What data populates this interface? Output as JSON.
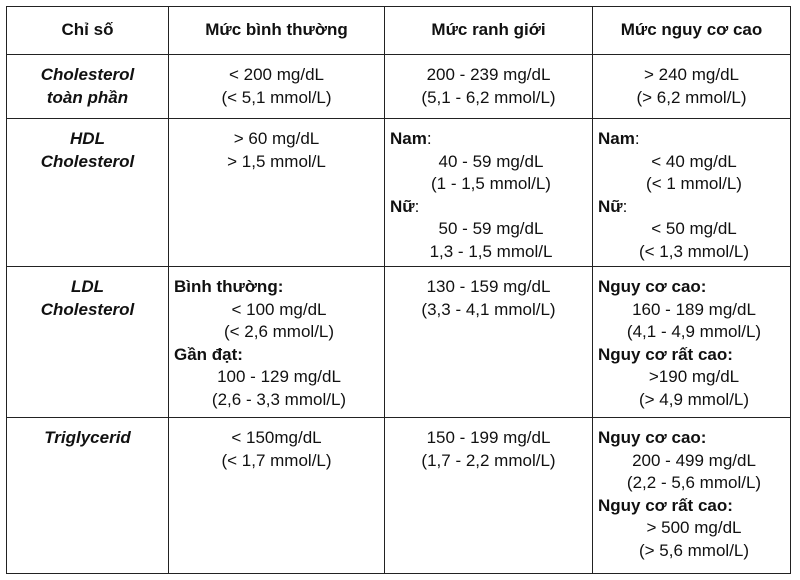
{
  "headers": [
    "Chỉ số",
    "Mức bình thường",
    "Mức ranh giới",
    "Mức nguy cơ cao"
  ],
  "rows": [
    {
      "name": [
        "Cholesterol",
        "toàn phần"
      ],
      "normal": [
        "< 200 mg/dL",
        "(< 5,1 mmol/L)"
      ],
      "borderline": [
        "200 - 239 mg/dL",
        "(5,1 - 6,2 mmol/L)"
      ],
      "high": [
        "> 240 mg/dL",
        "(> 6,2 mmol/L)"
      ]
    },
    {
      "name": [
        "HDL",
        "Cholesterol"
      ],
      "normal": [
        "> 60 mg/dL",
        "> 1,5 mmol/L"
      ],
      "borderline": {
        "male_label": "Nam",
        "male": [
          "40 - 59 mg/dL",
          "(1 - 1,5 mmol/L)"
        ],
        "female_label": "Nữ",
        "female": [
          "50 - 59 mg/dL",
          "1,3 - 1,5 mmol/L"
        ]
      },
      "high": {
        "male_label": "Nam",
        "male": [
          "< 40 mg/dL",
          "(< 1 mmol/L)"
        ],
        "female_label": "Nữ",
        "female": [
          "< 50 mg/dL",
          "(< 1,3 mmol/L)"
        ]
      }
    },
    {
      "name": [
        "LDL",
        "Cholesterol"
      ],
      "normal": {
        "label1": "Bình thường:",
        "values1": [
          "< 100 mg/dL",
          "(< 2,6 mmol/L)"
        ],
        "label2": "Gần đạt:",
        "values2": [
          "100 - 129 mg/dL",
          "(2,6 - 3,3 mmol/L)"
        ]
      },
      "borderline": [
        "130 - 159 mg/dL",
        "(3,3 - 4,1 mmol/L)"
      ],
      "high": {
        "label1": "Nguy cơ cao:",
        "values1": [
          "160 - 189 mg/dL",
          "(4,1 - 4,9 mmol/L)"
        ],
        "label2": "Nguy cơ rất cao:",
        "values2": [
          ">190 mg/dL",
          "(> 4,9 mmol/L)"
        ]
      }
    },
    {
      "name": [
        "Triglycerid"
      ],
      "normal": [
        "< 150mg/dL",
        "(< 1,7 mmol/L)"
      ],
      "borderline": [
        "150 - 199 mg/dL",
        "(1,7 - 2,2 mmol/L)"
      ],
      "high": {
        "label1": "Nguy cơ cao:",
        "values1": [
          "200 - 499 mg/dL",
          "(2,2 - 5,6 mmol/L)"
        ],
        "label2": "Nguy cơ rất cao:",
        "values2": [
          "> 500 mg/dL",
          "(> 5,6 mmol/L)"
        ]
      }
    }
  ]
}
